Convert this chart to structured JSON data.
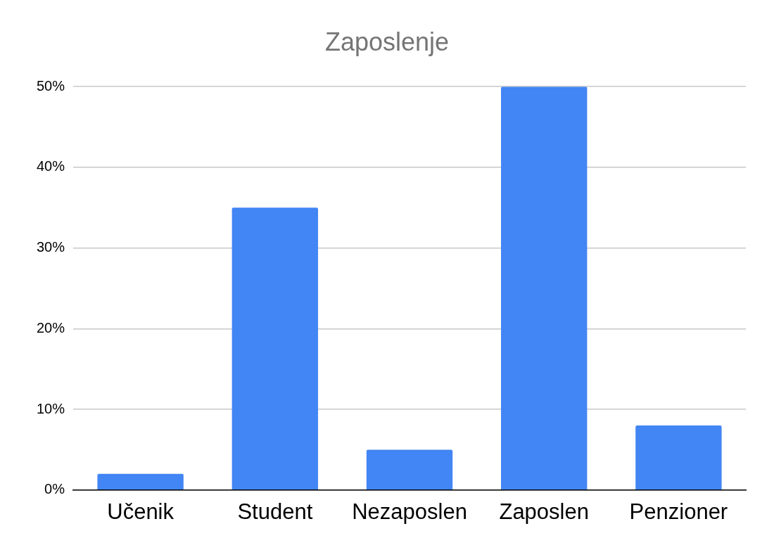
{
  "chart_data": {
    "type": "bar",
    "title": "Zaposlenje",
    "categories": [
      "Učenik",
      "Student",
      "Nezaposlen",
      "Zaposlen",
      "Penzioner"
    ],
    "values": [
      2,
      35,
      5,
      50,
      8
    ],
    "color": "#4285f4",
    "ylim": [
      0,
      50
    ],
    "yticks": [
      {
        "value": 0,
        "label": "0%"
      },
      {
        "value": 10,
        "label": "10%"
      },
      {
        "value": 20,
        "label": "20%"
      },
      {
        "value": 30,
        "label": "30%"
      },
      {
        "value": 40,
        "label": "40%"
      },
      {
        "value": 50,
        "label": "50%"
      }
    ],
    "grid": "y",
    "legend": false
  }
}
